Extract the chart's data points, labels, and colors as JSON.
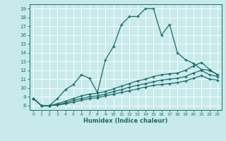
{
  "xlabel": "Humidex (Indice chaleur)",
  "background_color": "#c8eaea",
  "grid_color": "#b8d8d8",
  "line_color": "#1a6b6b",
  "xlim": [
    -0.5,
    23.5
  ],
  "ylim": [
    7.5,
    19.5
  ],
  "xticks": [
    0,
    1,
    2,
    3,
    4,
    5,
    6,
    7,
    8,
    9,
    10,
    11,
    12,
    13,
    14,
    15,
    16,
    17,
    18,
    19,
    20,
    21,
    22,
    23
  ],
  "yticks": [
    8,
    9,
    10,
    11,
    12,
    13,
    14,
    15,
    16,
    17,
    18,
    19
  ],
  "line1_x": [
    0,
    1,
    2,
    3,
    4,
    5,
    6,
    7,
    8,
    9,
    10,
    11,
    12,
    13,
    14,
    15,
    16,
    17,
    18,
    19,
    20,
    21,
    22,
    23
  ],
  "line1_y": [
    8.8,
    8.0,
    8.0,
    8.8,
    9.8,
    10.4,
    11.5,
    11.1,
    9.5,
    13.2,
    14.7,
    17.2,
    18.1,
    18.1,
    19.0,
    19.0,
    16.0,
    17.2,
    14.0,
    13.2,
    12.8,
    12.1,
    12.0,
    11.5
  ],
  "line2_x": [
    0,
    1,
    2,
    3,
    4,
    5,
    6,
    7,
    8,
    9,
    10,
    11,
    12,
    13,
    14,
    15,
    16,
    17,
    18,
    19,
    20,
    21,
    22,
    23
  ],
  "line2_y": [
    8.8,
    8.0,
    8.0,
    8.2,
    8.5,
    8.8,
    9.1,
    9.3,
    9.4,
    9.6,
    9.9,
    10.2,
    10.5,
    10.8,
    11.0,
    11.3,
    11.5,
    11.6,
    11.7,
    12.0,
    12.5,
    12.9,
    12.1,
    11.5
  ],
  "line3_x": [
    0,
    1,
    2,
    3,
    4,
    5,
    6,
    7,
    8,
    9,
    10,
    11,
    12,
    13,
    14,
    15,
    16,
    17,
    18,
    19,
    20,
    21,
    22,
    23
  ],
  "line3_y": [
    8.8,
    8.0,
    8.0,
    8.1,
    8.3,
    8.6,
    8.8,
    9.0,
    9.1,
    9.3,
    9.6,
    9.8,
    10.1,
    10.3,
    10.5,
    10.7,
    10.9,
    11.0,
    11.1,
    11.3,
    11.7,
    12.0,
    11.5,
    11.3
  ],
  "line4_x": [
    0,
    1,
    2,
    3,
    4,
    5,
    6,
    7,
    8,
    9,
    10,
    11,
    12,
    13,
    14,
    15,
    16,
    17,
    18,
    19,
    20,
    21,
    22,
    23
  ],
  "line4_y": [
    8.8,
    8.0,
    8.0,
    8.05,
    8.2,
    8.4,
    8.6,
    8.8,
    8.9,
    9.1,
    9.3,
    9.5,
    9.7,
    9.9,
    10.1,
    10.3,
    10.4,
    10.5,
    10.6,
    10.8,
    11.1,
    11.4,
    11.0,
    10.9
  ]
}
